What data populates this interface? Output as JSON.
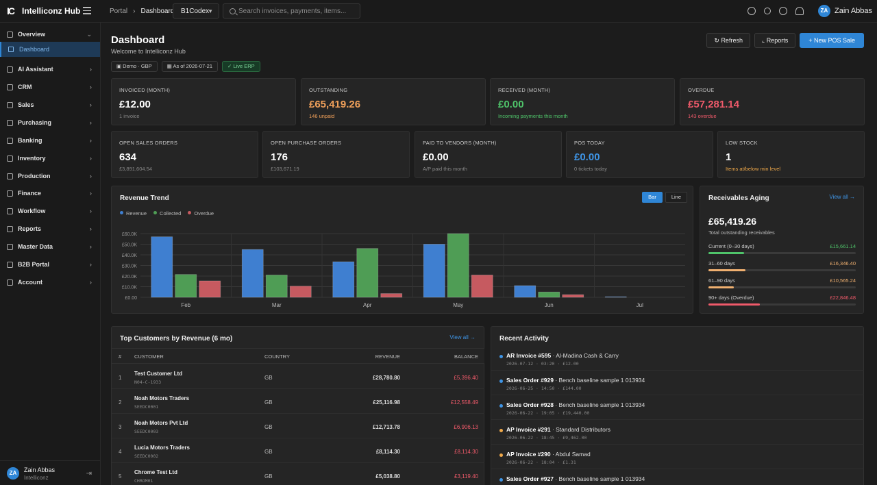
{
  "app": {
    "logo_mark": "IC",
    "name": "Intelliconz Hub"
  },
  "breadcrumb": {
    "root": "Portal",
    "sep": "›",
    "current": "Dashboard"
  },
  "company_select": {
    "value": "B1Codex"
  },
  "search": {
    "placeholder": "Search invoices, payments, items..."
  },
  "user": {
    "initials": "ZA",
    "name": "Zain Abbas",
    "org": "Intelliconz"
  },
  "sidebar": {
    "items": [
      {
        "label": "Overview",
        "name": "overview",
        "expanded": true
      },
      {
        "label": "AI Assistant",
        "name": "ai-assistant"
      },
      {
        "label": "CRM",
        "name": "crm"
      },
      {
        "label": "Sales",
        "name": "sales"
      },
      {
        "label": "Purchasing",
        "name": "purchasing"
      },
      {
        "label": "Banking",
        "name": "banking"
      },
      {
        "label": "Inventory",
        "name": "inventory"
      },
      {
        "label": "Production",
        "name": "production"
      },
      {
        "label": "Finance",
        "name": "finance"
      },
      {
        "label": "Workflow",
        "name": "workflow"
      },
      {
        "label": "Reports",
        "name": "reports"
      },
      {
        "label": "Master Data",
        "name": "master-data"
      },
      {
        "label": "B2B Portal",
        "name": "b2b-portal"
      },
      {
        "label": "Account",
        "name": "account"
      }
    ],
    "active_sub": "Dashboard"
  },
  "header": {
    "title": "Dashboard",
    "subtitle": "Welcome to Intelliconz Hub",
    "chips": {
      "tenant": "Demo · GBP",
      "as_of": "As of 2026-07-21",
      "live": "Live ERP"
    },
    "buttons": {
      "refresh": "Refresh",
      "reports": "Reports",
      "new_pos": "New POS Sale"
    }
  },
  "kpis_row1": [
    {
      "label": "INVOICED (MONTH)",
      "value": "£12.00",
      "sub": "1 invoice",
      "tone": ""
    },
    {
      "label": "OUTSTANDING",
      "value": "£65,419.26",
      "sub": "146 unpaid",
      "tone": "orange"
    },
    {
      "label": "RECEIVED (MONTH)",
      "value": "£0.00",
      "sub": "Incoming payments this month",
      "tone": "green"
    },
    {
      "label": "OVERDUE",
      "value": "£57,281.14",
      "sub": "143 overdue",
      "tone": "red"
    }
  ],
  "kpis_row2": [
    {
      "label": "OPEN SALES ORDERS",
      "value": "634",
      "sub": "£3,891,604.54",
      "tone": ""
    },
    {
      "label": "OPEN PURCHASE ORDERS",
      "value": "176",
      "sub": "£103,671.19",
      "tone": ""
    },
    {
      "label": "PAID TO VENDORS (MONTH)",
      "value": "£0.00",
      "sub": "A/P paid this month",
      "tone": ""
    },
    {
      "label": "POS TODAY",
      "value": "£0.00",
      "sub": "0 tickets today",
      "tone": "blue"
    },
    {
      "label": "LOW STOCK",
      "value": "1",
      "sub": "Items at/below min level",
      "tone": "amber"
    }
  ],
  "revenue_trend": {
    "title": "Revenue Trend",
    "toggle": {
      "bar": "Bar",
      "line": "Line",
      "active": "bar"
    }
  },
  "chart_data": {
    "type": "bar",
    "title": "Revenue Trend",
    "categories": [
      "Feb",
      "Mar",
      "Apr",
      "May",
      "Jun",
      "Jul"
    ],
    "series": [
      {
        "name": "Revenue",
        "color": "#3f7fd0",
        "values": [
          57000,
          45000,
          33500,
          50000,
          11000,
          500
        ]
      },
      {
        "name": "Collected",
        "color": "#4f9d55",
        "values": [
          21500,
          21000,
          46000,
          60000,
          5000,
          0
        ]
      },
      {
        "name": "Overdue",
        "color": "#c65a60",
        "values": [
          15500,
          10500,
          3500,
          21000,
          2500,
          0
        ]
      }
    ],
    "ylim": [
      0,
      60000
    ],
    "yticks": [
      "£0.00",
      "£10.0K",
      "£20.0K",
      "£30.0K",
      "£40.0K",
      "£50.0K",
      "£60.0K"
    ],
    "grid": true,
    "legend": "top-left"
  },
  "aging": {
    "title": "Receivables Aging",
    "view_all": "View all →",
    "total": "£65,419.26",
    "total_label": "Total outstanding receivables",
    "buckets": [
      {
        "label": "Current (0–30 days)",
        "value": "£15,661.14",
        "fraction": 0.24,
        "color": "#4fc46a"
      },
      {
        "label": "31–60 days",
        "value": "£16,346.40",
        "fraction": 0.25,
        "color": "#f0b070"
      },
      {
        "label": "61–90 days",
        "value": "£10,565.24",
        "fraction": 0.17,
        "color": "#f0b070"
      },
      {
        "label": "90+ days (Overdue)",
        "value": "£22,846.48",
        "fraction": 0.35,
        "color": "#ef5a6a"
      }
    ]
  },
  "top_customers": {
    "title": "Top Customers by Revenue (6 mo)",
    "view_all": "View all →",
    "columns": {
      "idx": "#",
      "customer": "CUSTOMER",
      "country": "COUNTRY",
      "revenue": "REVENUE",
      "balance": "BALANCE"
    },
    "rows": [
      {
        "idx": "1",
        "name": "Test Customer Ltd",
        "code": "N04-C-1933",
        "country": "GB",
        "revenue": "£28,780.80",
        "balance": "£5,396.40"
      },
      {
        "idx": "2",
        "name": "Noah Motors Traders",
        "code": "SEEDC0001",
        "country": "GB",
        "revenue": "£25,116.98",
        "balance": "£12,558.49"
      },
      {
        "idx": "3",
        "name": "Noah Motors Pvt Ltd",
        "code": "SEEDC0003",
        "country": "GB",
        "revenue": "£12,713.78",
        "balance": "£6,906.13"
      },
      {
        "idx": "4",
        "name": "Lucia Motors Traders",
        "code": "SEEDC0002",
        "country": "GB",
        "revenue": "£8,114.30",
        "balance": "£8,114.30"
      },
      {
        "idx": "5",
        "name": "Chrome Test Ltd",
        "code": "CHROM01",
        "country": "GB",
        "revenue": "£5,038.80",
        "balance": "£3,119.40"
      }
    ]
  },
  "recent_activity": {
    "title": "Recent Activity",
    "items": [
      {
        "type": "AR Invoice #595",
        "desc": " · Al-Madina Cash & Carry",
        "meta": "2026-07-12 · 03:20 · £12.00",
        "color": "#3f95e6"
      },
      {
        "type": "Sales Order #929",
        "desc": " · Bench baseline sample 1 013934",
        "meta": "2026-06-25 · 14:50 · £144.00",
        "color": "#3f95e6"
      },
      {
        "type": "Sales Order #928",
        "desc": " · Bench baseline sample 1 013934",
        "meta": "2026-06-22 · 19:05 · £19,440.00",
        "color": "#3f95e6"
      },
      {
        "type": "AP Invoice #291",
        "desc": " · Standard Distributors",
        "meta": "2026-06-22 · 18:45 · £9,462.00",
        "color": "#f0a94a"
      },
      {
        "type": "AP Invoice #290",
        "desc": " · Abdul Samad",
        "meta": "2026-06-22 · 18:04 · £1.31",
        "color": "#f0a94a"
      },
      {
        "type": "Sales Order #927",
        "desc": " · Bench baseline sample 1 013934",
        "meta": "",
        "color": "#3f95e6"
      }
    ]
  }
}
